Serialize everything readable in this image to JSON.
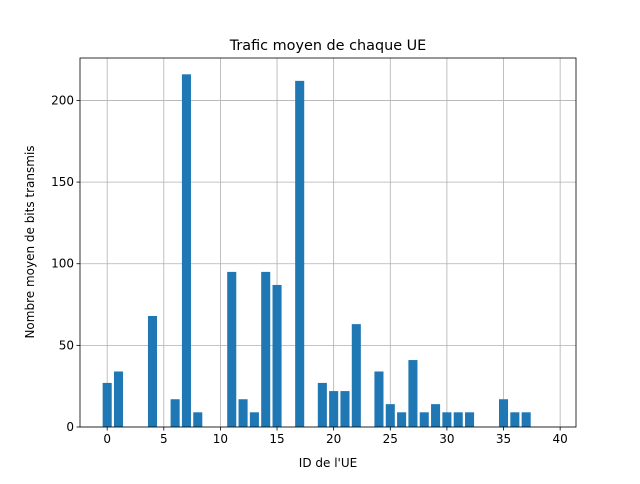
{
  "chart_data": {
    "type": "bar",
    "title": "Trafic moyen de chaque UE",
    "xlabel": "ID de l'UE",
    "ylabel": "Nombre moyen de bits transmis",
    "xlim": [
      -2.4,
      41.4
    ],
    "ylim": [
      0,
      226
    ],
    "xticks": [
      0,
      5,
      10,
      15,
      20,
      25,
      30,
      35,
      40
    ],
    "yticks": [
      0,
      50,
      100,
      150,
      200
    ],
    "grid": true,
    "bar_color": "#1f77b4",
    "x": [
      0,
      1,
      4,
      6,
      7,
      8,
      11,
      12,
      13,
      14,
      15,
      17,
      19,
      20,
      21,
      22,
      24,
      25,
      26,
      27,
      28,
      29,
      30,
      31,
      32,
      35,
      36,
      37
    ],
    "values": [
      27,
      34,
      68,
      17,
      216,
      9,
      95,
      17,
      9,
      95,
      87,
      212,
      27,
      22,
      22,
      63,
      34,
      14,
      9,
      41,
      9,
      14,
      9,
      9,
      9,
      17,
      9,
      9
    ]
  }
}
